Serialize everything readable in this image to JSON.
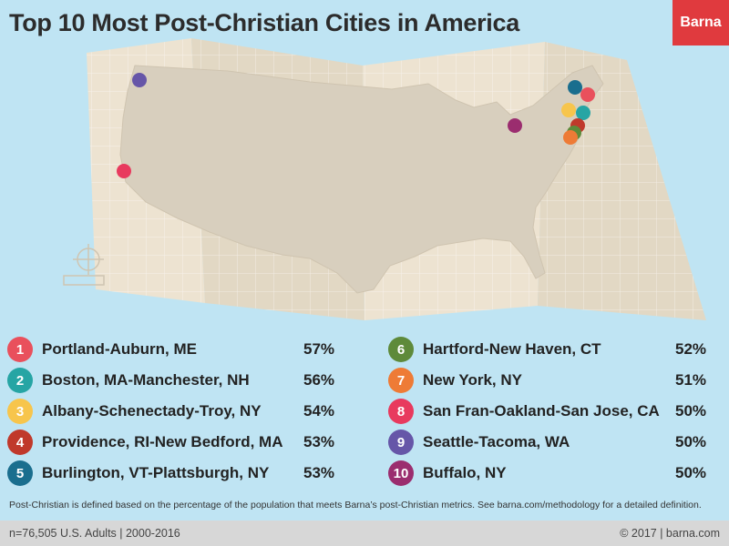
{
  "title": "Top 10 Most Post-Christian Cities in America",
  "logo": "Barna",
  "chart_data": {
    "type": "table",
    "title": "Top 10 Most Post-Christian Cities in America",
    "unit": "%",
    "entries": [
      {
        "rank": 1,
        "city": "Portland-Auburn, ME",
        "value": 57,
        "label": "57%",
        "color": "#e9505c"
      },
      {
        "rank": 2,
        "city": "Boston, MA-Manchester, NH",
        "value": 56,
        "label": "56%",
        "color": "#26a5a4"
      },
      {
        "rank": 3,
        "city": "Albany-Schenectady-Troy, NY",
        "value": 54,
        "label": "54%",
        "color": "#f7c54c"
      },
      {
        "rank": 4,
        "city": "Providence, RI-New Bedford, MA",
        "value": 53,
        "label": "53%",
        "color": "#c0392b"
      },
      {
        "rank": 5,
        "city": "Burlington, VT-Plattsburgh, NY",
        "value": 53,
        "label": "53%",
        "color": "#1a6e8e"
      },
      {
        "rank": 6,
        "city": "Hartford-New Haven, CT",
        "value": 52,
        "label": "52%",
        "color": "#5e8a3a"
      },
      {
        "rank": 7,
        "city": "New York, NY",
        "value": 51,
        "label": "51%",
        "color": "#ee7b36"
      },
      {
        "rank": 8,
        "city": "San Fran-Oakland-San Jose, CA",
        "value": 50,
        "label": "50%",
        "color": "#e83a5e"
      },
      {
        "rank": 9,
        "city": "Seattle-Tacoma, WA",
        "value": 50,
        "label": "50%",
        "color": "#6656a8"
      },
      {
        "rank": 10,
        "city": "Buffalo, NY",
        "value": 50,
        "label": "50%",
        "color": "#9b2d6f"
      }
    ]
  },
  "footnote": "Post-Christian is defined based on the percentage of the population that meets Barna’s post-Christian metrics. See barna.com/methodology for a detailed definition.",
  "footer": {
    "sample": "n=76,505 U.S. Adults | 2000-2016",
    "credit": "© 2017 | barna.com"
  }
}
